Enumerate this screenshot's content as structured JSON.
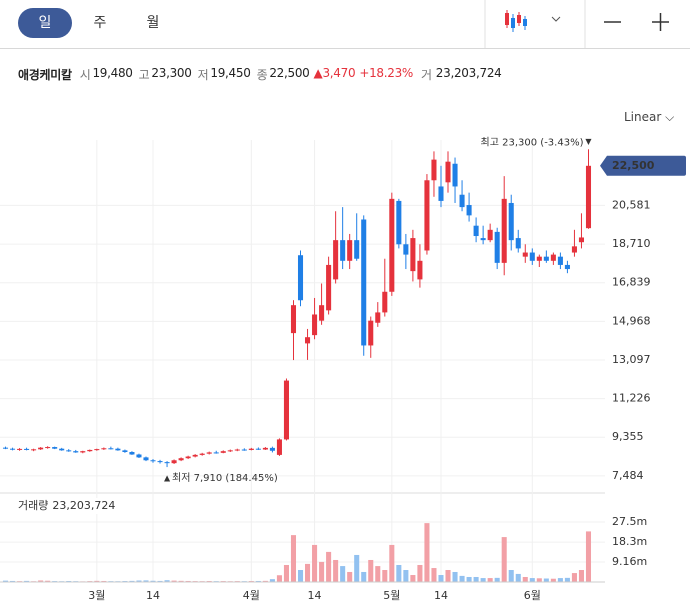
{
  "tabs": [
    "일",
    "주",
    "월"
  ],
  "selected_tab": 0,
  "info": {
    "name": "애경케미칼",
    "items": [
      {
        "label": "시",
        "value": "19,480"
      },
      {
        "label": "고",
        "value": "23,300"
      },
      {
        "label": "저",
        "value": "19,450"
      },
      {
        "label": "종",
        "value": "22,500"
      }
    ],
    "change": "3,470",
    "change_pct": "+18.23%",
    "volume_label": "거",
    "volume": "23,203,724"
  },
  "scale_label": "Linear",
  "chart_data": {
    "type": "candlestick",
    "categories": [
      null,
      null,
      null,
      null,
      null,
      null,
      null,
      null,
      null,
      null,
      null,
      null,
      null,
      "3월",
      null,
      null,
      null,
      null,
      null,
      null,
      null,
      "14",
      null,
      null,
      null,
      null,
      null,
      null,
      null,
      null,
      null,
      null,
      null,
      null,
      null,
      "4월",
      null,
      null,
      null,
      null,
      null,
      null,
      null,
      null,
      "14",
      null,
      null,
      null,
      null,
      null,
      null,
      null,
      null,
      null,
      null,
      "5월",
      null,
      null,
      null,
      null,
      null,
      null,
      "14",
      null,
      null,
      null,
      null,
      null,
      null,
      null,
      null,
      null,
      null,
      null,
      null,
      "6월",
      null,
      null,
      null,
      null,
      null,
      null,
      null,
      null
    ],
    "open": [
      8850,
      8800,
      8760,
      8790,
      8740,
      8770,
      8850,
      8880,
      8800,
      8720,
      8680,
      8620,
      8680,
      8740,
      8780,
      8820,
      8800,
      8720,
      8640,
      8520,
      8380,
      8240,
      8200,
      8150,
      8100,
      8240,
      8340,
      8420,
      8500,
      8560,
      8620,
      8600,
      8680,
      8720,
      8760,
      8740,
      8800,
      8760,
      8840,
      8500,
      9250,
      14398,
      18170,
      13900,
      14300,
      15000,
      15500,
      17000,
      18900,
      17900,
      18900,
      19900,
      13800,
      14900,
      15400,
      16400,
      20800,
      18700,
      17400,
      17000,
      18400,
      21800,
      21500,
      21700,
      22600,
      21100,
      20600,
      19600,
      19000,
      18900,
      19300,
      17800,
      20700,
      19000,
      18100,
      18300,
      17900,
      18100,
      17900,
      18100,
      17700,
      18300,
      18800,
      19480
    ],
    "high": [
      8900,
      8850,
      8830,
      8850,
      8800,
      8880,
      8920,
      8900,
      8840,
      8780,
      8740,
      8700,
      8760,
      8800,
      8860,
      8900,
      8850,
      8760,
      8680,
      8560,
      8420,
      8300,
      8260,
      8200,
      8280,
      8380,
      8460,
      8540,
      8600,
      8660,
      8700,
      8720,
      8760,
      8800,
      8820,
      8840,
      8860,
      8880,
      8900,
      9300,
      12200,
      15993,
      18400,
      14600,
      16100,
      16800,
      18100,
      20300,
      20500,
      19200,
      20200,
      20100,
      15200,
      15900,
      18000,
      21200,
      20900,
      19200,
      19400,
      18700,
      22100,
      23200,
      22500,
      23200,
      22900,
      21800,
      21200,
      20000,
      19600,
      19700,
      19500,
      22000,
      21100,
      19400,
      18700,
      18500,
      18200,
      18400,
      18300,
      18300,
      17900,
      19400,
      20200,
      23300
    ],
    "low": [
      8780,
      8720,
      8700,
      8720,
      8680,
      8740,
      8800,
      8780,
      8700,
      8650,
      8600,
      8580,
      8650,
      8700,
      8740,
      8760,
      8700,
      8600,
      8500,
      8350,
      8200,
      8120,
      8080,
      7910,
      8060,
      8200,
      8300,
      8380,
      8460,
      8520,
      8560,
      8580,
      8640,
      8680,
      8700,
      8720,
      8740,
      8740,
      8620,
      8450,
      9200,
      13093,
      15700,
      13100,
      14100,
      14800,
      15300,
      16800,
      17500,
      17500,
      17900,
      13300,
      13200,
      14700,
      15200,
      16200,
      18500,
      17500,
      16900,
      16600,
      18200,
      21000,
      20500,
      21200,
      20700,
      20300,
      19800,
      18800,
      18700,
      18800,
      17500,
      17200,
      18400,
      18300,
      17800,
      17700,
      17600,
      17800,
      17700,
      17500,
      17300,
      18100,
      18500,
      19450
    ],
    "close": [
      8800,
      8760,
      8790,
      8740,
      8770,
      8850,
      8880,
      8800,
      8720,
      8680,
      8620,
      8680,
      8740,
      8780,
      8820,
      8800,
      8720,
      8640,
      8520,
      8380,
      8240,
      8200,
      8150,
      8100,
      8240,
      8340,
      8420,
      8500,
      8560,
      8620,
      8600,
      8680,
      8720,
      8760,
      8740,
      8800,
      8760,
      8840,
      8700,
      9250,
      12100,
      15751,
      15990,
      14200,
      15300,
      15750,
      17700,
      18900,
      17900,
      18900,
      18000,
      13800,
      15000,
      15400,
      16400,
      20900,
      18700,
      18200,
      19000,
      17900,
      21800,
      22800,
      20800,
      22700,
      21500,
      20500,
      20100,
      19100,
      18900,
      19400,
      17800,
      20900,
      18900,
      18500,
      18300,
      17900,
      18100,
      17900,
      18200,
      17700,
      17500,
      18600,
      19030,
      22500
    ],
    "volume": [
      620000,
      480000,
      390000,
      510000,
      350000,
      700000,
      580000,
      420000,
      360000,
      450000,
      380000,
      300000,
      410000,
      520000,
      470000,
      390000,
      360000,
      440000,
      510000,
      680000,
      730000,
      560000,
      490000,
      820000,
      640000,
      530000,
      470000,
      410000,
      380000,
      450000,
      390000,
      420000,
      360000,
      410000,
      380000,
      440000,
      470000,
      520000,
      1300000,
      3100000,
      7800000,
      21500000,
      5500000,
      8300000,
      17000000,
      9200000,
      13800000,
      10100000,
      7300000,
      4600000,
      12400000,
      4600000,
      10100000,
      7300000,
      5500000,
      17000000,
      7800000,
      5500000,
      3200000,
      7800000,
      27000000,
      6400000,
      3200000,
      5500000,
      4600000,
      2800000,
      2300000,
      2300000,
      1800000,
      1800000,
      1900000,
      20600000,
      5500000,
      3700000,
      2300000,
      1800000,
      1700000,
      1600000,
      1500000,
      1800000,
      1900000,
      4100000,
      5500000,
      23203724
    ],
    "up_color": "#e5323c",
    "down_color": "#1f7fe6",
    "volume_up_color": "#f2a0a6",
    "volume_down_color": "#92c1f0",
    "ylim": [
      6800,
      23750
    ],
    "yticks": [
      {
        "value": 7484,
        "label": "7,484"
      },
      {
        "value": 9355,
        "label": "9,355"
      },
      {
        "value": 11226,
        "label": "11,226"
      },
      {
        "value": 13097,
        "label": "13,097"
      },
      {
        "value": 14968,
        "label": "14,968"
      },
      {
        "value": 16839,
        "label": "16,839"
      },
      {
        "value": 18710,
        "label": "18,710"
      },
      {
        "value": 20581,
        "label": "20,581"
      }
    ],
    "price_marker": {
      "value": 22500,
      "label": "22,500"
    },
    "high_annotation": "최고 23,300 (-3.43%)",
    "low_annotation": "최저 7,910 (184.45%)",
    "volume_title": "거래량",
    "volume_title_value": "23,203,724",
    "volume_ylim": [
      0,
      39900000
    ],
    "volume_yticks": [
      {
        "value": 9160000,
        "label": "9.16m"
      },
      {
        "value": 18300000,
        "label": "18.3m"
      },
      {
        "value": 27500000,
        "label": "27.5m"
      }
    ],
    "grid": true
  }
}
